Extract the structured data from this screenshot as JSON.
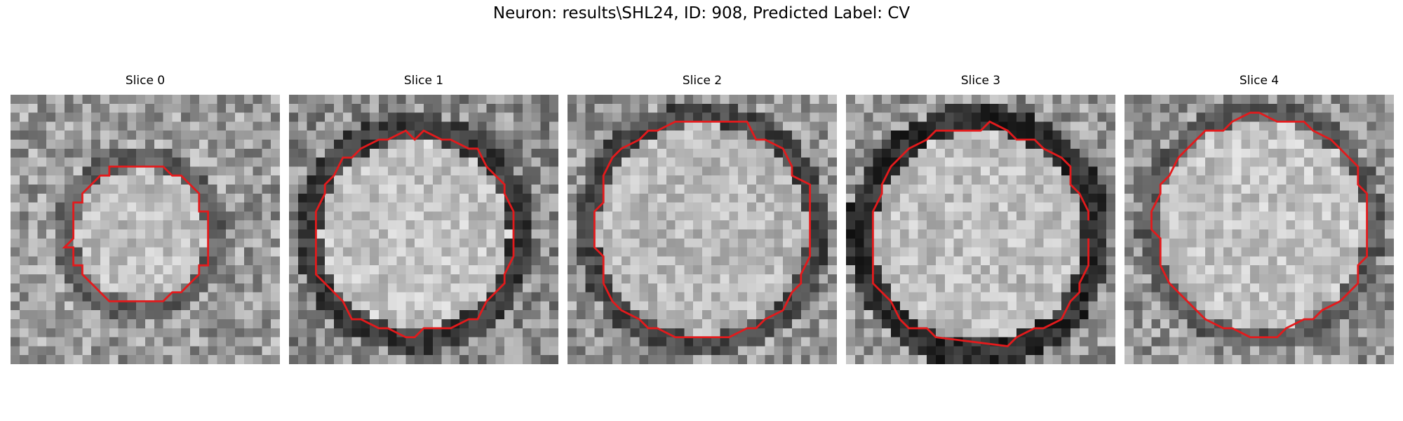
{
  "figure": {
    "title": "Neuron: results\\SHL24, ID: 908, Predicted Label: CV"
  },
  "panels": [
    {
      "title": "Slice 0"
    },
    {
      "title": "Slice 1"
    },
    {
      "title": "Slice 2"
    },
    {
      "title": "Slice 3"
    },
    {
      "title": "Slice 4"
    }
  ],
  "colors": {
    "contour": "#e31a1c",
    "colormap": "gray"
  }
}
